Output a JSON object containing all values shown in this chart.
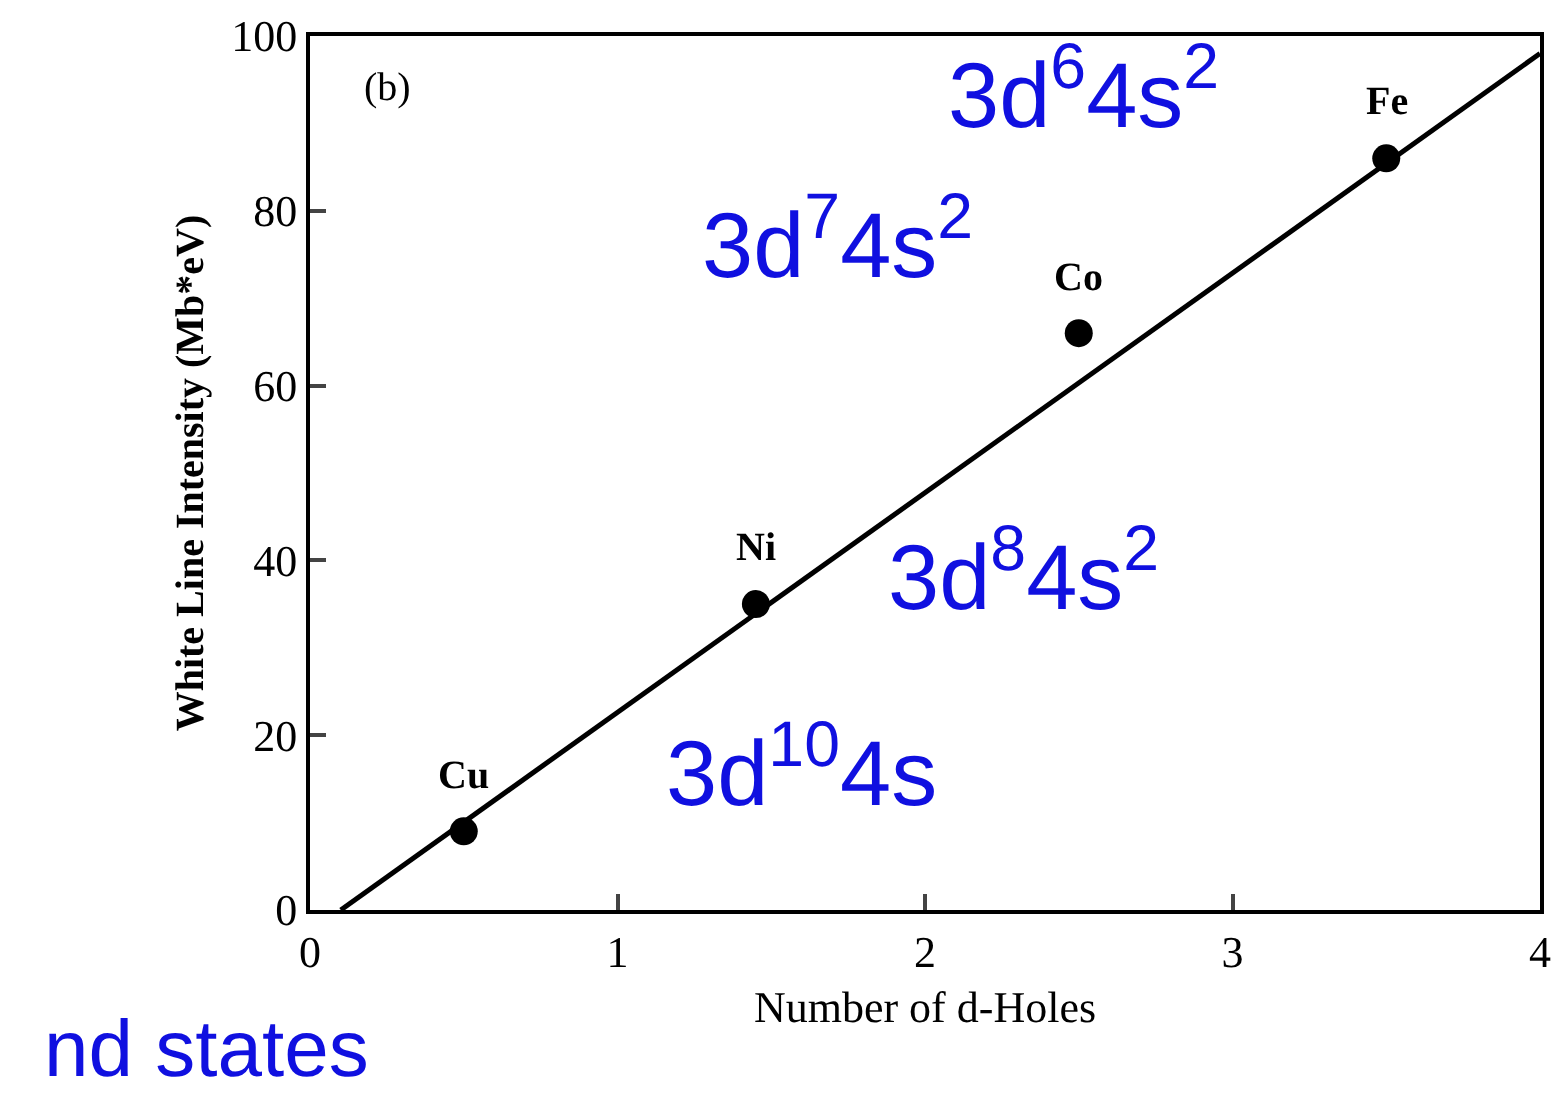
{
  "chart_data": {
    "type": "scatter",
    "xlabel": "Number of d-Holes",
    "ylabel": "White Line Intensity (Mb*eV)",
    "xlim": [
      0,
      4
    ],
    "xticks": [
      0,
      1,
      2,
      3,
      4
    ],
    "ylim": [
      0,
      100
    ],
    "yticks": [
      0,
      20,
      40,
      60,
      80,
      100
    ],
    "series": [
      {
        "color": "#000000",
        "x": [
          0.5,
          1.45,
          2.5,
          3.5
        ],
        "values": [
          9,
          35,
          66,
          86
        ],
        "marker": "circle"
      },
      {
        "type": "line",
        "color": "#000000",
        "x": [
          0.1,
          4
        ],
        "values": [
          0,
          98
        ],
        "line_style": "solid"
      }
    ],
    "annotations": [
      {
        "text": "Cu",
        "x": 0.5,
        "y": 9
      },
      {
        "text": "Ni",
        "x": 1.45,
        "y": 35
      },
      {
        "text": "Co",
        "x": 2.5,
        "y": 66
      },
      {
        "text": "Fe",
        "x": 3.5,
        "y": 86
      },
      "3d$^{6}$4s$^{2}$",
      "3d$^{7}$4s$^{2}$",
      "3d$^{8}$4s$^{2}$",
      "3d$^{10}$4s",
      "(b)",
      "nd states"
    ]
  }
}
